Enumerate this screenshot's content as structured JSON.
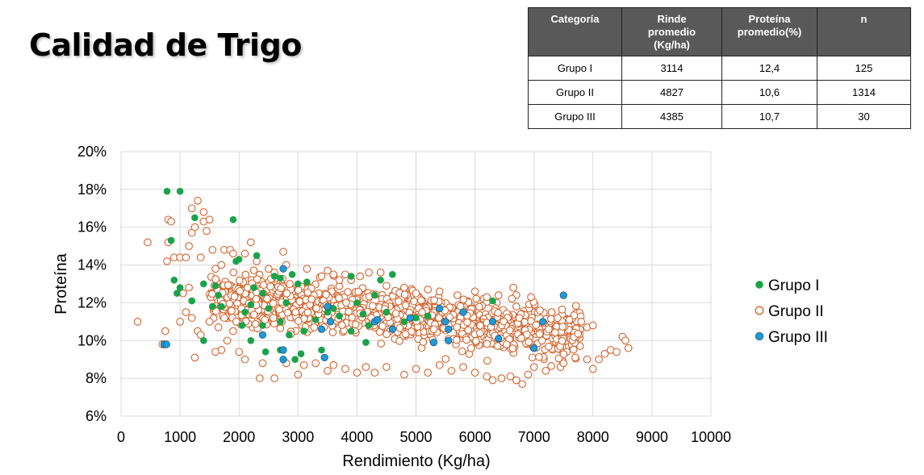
{
  "title": "Calidad de Trigo",
  "table": {
    "headers": [
      "Categoría",
      "Rinde\npromedio\n(Kg/ha)",
      "Proteína\npromedio(%)",
      "n"
    ],
    "rows": [
      [
        "Grupo I",
        "3114",
        "12,4",
        "125"
      ],
      [
        "Grupo II",
        "4827",
        "10,6",
        "1314"
      ],
      [
        "Grupo III",
        "4385",
        "10,7",
        "30"
      ]
    ]
  },
  "chart_data": {
    "type": "scatter",
    "xlabel": "Rendimiento (Kg/ha)",
    "ylabel": "Proteína",
    "xlim": [
      0,
      10000
    ],
    "ylim": [
      6,
      20
    ],
    "x_ticks": [
      "0",
      "1000",
      "2000",
      "3000",
      "4000",
      "5000",
      "6000",
      "7000",
      "8000",
      "9000",
      "10000"
    ],
    "y_ticks": [
      "6%",
      "8%",
      "10%",
      "12%",
      "14%",
      "16%",
      "18%",
      "20%"
    ],
    "grid": true,
    "legend_position": "right",
    "series": [
      {
        "name": "Grupo I",
        "marker": "filled-circle",
        "color": "#1aa34a",
        "points": [
          [
            780,
            17.9
          ],
          [
            1000,
            17.9
          ],
          [
            850,
            15.3
          ],
          [
            1250,
            16.5
          ],
          [
            1900,
            16.4
          ],
          [
            900,
            13.2
          ],
          [
            1000,
            12.8
          ],
          [
            950,
            12.5
          ],
          [
            1200,
            12.1
          ],
          [
            1400,
            13.0
          ],
          [
            1600,
            12.9
          ],
          [
            1550,
            11.8
          ],
          [
            1650,
            12.4
          ],
          [
            1700,
            11.8
          ],
          [
            1950,
            14.2
          ],
          [
            2000,
            14.3
          ],
          [
            2300,
            14.5
          ],
          [
            2250,
            12.8
          ],
          [
            2400,
            12.5
          ],
          [
            2600,
            13.4
          ],
          [
            2700,
            13.3
          ],
          [
            2900,
            13.5
          ],
          [
            3000,
            13.0
          ],
          [
            3150,
            13.1
          ],
          [
            2100,
            11.5
          ],
          [
            2200,
            11.9
          ],
          [
            2500,
            11.7
          ],
          [
            2800,
            12.0
          ],
          [
            2400,
            10.8
          ],
          [
            2700,
            11.0
          ],
          [
            2050,
            10.8
          ],
          [
            1400,
            10.0
          ],
          [
            2200,
            10.0
          ],
          [
            2450,
            9.4
          ],
          [
            2700,
            9.5
          ],
          [
            2950,
            9.0
          ],
          [
            3100,
            10.5
          ],
          [
            3300,
            11.1
          ],
          [
            3500,
            11.5
          ],
          [
            3600,
            11.7
          ],
          [
            3700,
            11.3
          ],
          [
            3900,
            13.4
          ],
          [
            4000,
            12.0
          ],
          [
            4100,
            11.4
          ],
          [
            4200,
            10.8
          ],
          [
            4300,
            12.4
          ],
          [
            4400,
            13.2
          ],
          [
            4600,
            13.5
          ],
          [
            4500,
            11.5
          ],
          [
            4800,
            11.0
          ],
          [
            5000,
            11.2
          ],
          [
            5200,
            11.3
          ],
          [
            4150,
            9.9
          ],
          [
            3900,
            10.5
          ],
          [
            3400,
            9.5
          ],
          [
            2850,
            10.3
          ],
          [
            3050,
            9.3
          ],
          [
            6300,
            12.1
          ]
        ]
      },
      {
        "name": "Grupo II",
        "marker": "hollow-circle",
        "color": "#d2622b",
        "points": [
          [
            280,
            11.0
          ],
          [
            450,
            15.2
          ],
          [
            780,
            14.2
          ],
          [
            800,
            16.4
          ],
          [
            850,
            16.3
          ],
          [
            800,
            15.2
          ],
          [
            900,
            14.4
          ],
          [
            1000,
            14.4
          ],
          [
            1100,
            14.4
          ],
          [
            1150,
            15.0
          ],
          [
            1200,
            15.7
          ],
          [
            1250,
            16.0
          ],
          [
            1300,
            17.4
          ],
          [
            1200,
            17.0
          ],
          [
            1400,
            16.8
          ],
          [
            1400,
            16.3
          ],
          [
            1500,
            16.4
          ],
          [
            1450,
            15.8
          ],
          [
            1550,
            14.8
          ],
          [
            1350,
            14.4
          ],
          [
            1600,
            13.8
          ],
          [
            1700,
            14.0
          ],
          [
            1750,
            14.8
          ],
          [
            1850,
            14.8
          ],
          [
            1900,
            14.6
          ],
          [
            2100,
            14.6
          ],
          [
            2200,
            15.2
          ],
          [
            2300,
            14.2
          ],
          [
            2500,
            13.8
          ],
          [
            2600,
            13.6
          ],
          [
            2750,
            14.7
          ],
          [
            2800,
            14.0
          ],
          [
            3150,
            13.8
          ],
          [
            3400,
            13.4
          ],
          [
            3500,
            13.7
          ],
          [
            3600,
            13.5
          ],
          [
            3700,
            13.2
          ],
          [
            3800,
            13.5
          ],
          [
            3900,
            13.2
          ],
          [
            4050,
            13.4
          ],
          [
            4200,
            13.6
          ],
          [
            4400,
            13.6
          ],
          [
            4500,
            12.9
          ],
          [
            4800,
            12.8
          ],
          [
            5000,
            12.5
          ],
          [
            5200,
            12.7
          ],
          [
            5400,
            12.6
          ],
          [
            5700,
            12.4
          ],
          [
            6000,
            12.6
          ],
          [
            6200,
            12.3
          ],
          [
            6400,
            12.4
          ],
          [
            6650,
            12.8
          ],
          [
            6700,
            11.8
          ],
          [
            6950,
            12.3
          ],
          [
            7100,
            11.6
          ],
          [
            7300,
            11.5
          ],
          [
            7400,
            11.2
          ],
          [
            7600,
            11.1
          ],
          [
            7800,
            11.0
          ],
          [
            7900,
            10.7
          ],
          [
            8000,
            10.8
          ],
          [
            8000,
            8.5
          ],
          [
            8100,
            9.0
          ],
          [
            8300,
            9.5
          ],
          [
            8400,
            9.4
          ],
          [
            8500,
            10.2
          ],
          [
            8550,
            10.0
          ],
          [
            8600,
            9.6
          ],
          [
            1000,
            11.0
          ],
          [
            1100,
            11.5
          ],
          [
            1050,
            12.5
          ],
          [
            1150,
            12.8
          ],
          [
            1200,
            11.2
          ],
          [
            1300,
            10.5
          ],
          [
            1350,
            10.3
          ],
          [
            1500,
            11.0
          ],
          [
            1650,
            10.7
          ],
          [
            1700,
            9.5
          ],
          [
            1600,
            9.4
          ],
          [
            1250,
            9.1
          ],
          [
            750,
            10.5
          ],
          [
            700,
            9.8
          ],
          [
            1750,
            11.2
          ],
          [
            1800,
            10.0
          ],
          [
            1900,
            10.5
          ],
          [
            2000,
            9.4
          ],
          [
            2100,
            9.0
          ],
          [
            2350,
            8.0
          ],
          [
            2600,
            8.0
          ],
          [
            2400,
            8.8
          ],
          [
            2800,
            8.8
          ],
          [
            3000,
            8.2
          ],
          [
            3100,
            8.7
          ],
          [
            3300,
            8.8
          ],
          [
            3500,
            8.4
          ],
          [
            3600,
            8.7
          ],
          [
            3800,
            8.5
          ],
          [
            4000,
            8.3
          ],
          [
            4150,
            8.6
          ],
          [
            4300,
            8.3
          ],
          [
            4500,
            8.6
          ],
          [
            4800,
            8.2
          ],
          [
            5000,
            8.5
          ],
          [
            5200,
            8.3
          ],
          [
            5400,
            8.7
          ],
          [
            5600,
            8.4
          ],
          [
            5800,
            8.6
          ],
          [
            6000,
            8.3
          ],
          [
            6200,
            8.1
          ],
          [
            6300,
            7.9
          ],
          [
            6450,
            8.0
          ],
          [
            6600,
            8.1
          ],
          [
            6700,
            7.9
          ],
          [
            6800,
            7.7
          ],
          [
            6900,
            8.2
          ],
          [
            7000,
            8.6
          ],
          [
            7200,
            8.4
          ],
          [
            7450,
            8.6
          ],
          [
            7500,
            8.8
          ],
          [
            7700,
            9.1
          ],
          [
            7900,
            9.0
          ],
          [
            8200,
            9.3
          ]
        ]
      },
      {
        "name": "Grupo III",
        "marker": "filled-circle",
        "color": "#1e9ad6",
        "points": [
          [
            730,
            9.8
          ],
          [
            770,
            9.8
          ],
          [
            2750,
            13.8
          ],
          [
            2400,
            10.3
          ],
          [
            2750,
            9.0
          ],
          [
            2750,
            9.5
          ],
          [
            3400,
            10.6
          ],
          [
            3450,
            9.1
          ],
          [
            3500,
            11.8
          ],
          [
            3550,
            11.0
          ],
          [
            4300,
            11.0
          ],
          [
            4350,
            11.1
          ],
          [
            4600,
            10.6
          ],
          [
            4900,
            11.2
          ],
          [
            5300,
            9.9
          ],
          [
            5400,
            11.7
          ],
          [
            5500,
            11.0
          ],
          [
            5550,
            10.0
          ],
          [
            5550,
            10.6
          ],
          [
            5800,
            11.5
          ],
          [
            6300,
            11.0
          ],
          [
            6400,
            10.1
          ],
          [
            7000,
            9.6
          ],
          [
            7150,
            11.0
          ],
          [
            7500,
            12.4
          ]
        ]
      }
    ],
    "background_series": {
      "name": "Grupo II",
      "marker": "hollow-circle",
      "color": "#d2622b",
      "count": 1314,
      "x_mean": 4827,
      "y_mean": 10.6
    }
  },
  "colors": {
    "table_header_bg": "#595959",
    "grid": "#d9d9d9"
  }
}
